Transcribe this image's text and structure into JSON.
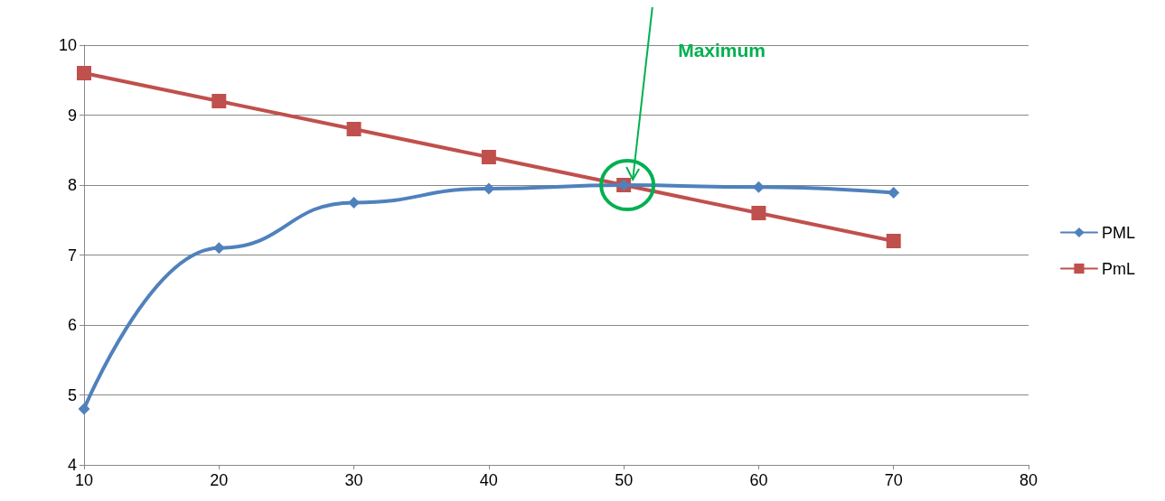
{
  "chart_data": {
    "type": "line",
    "x": [
      10,
      20,
      30,
      40,
      50,
      60,
      70
    ],
    "series": [
      {
        "name": "PML",
        "color": "#4f81bd",
        "values": [
          4.8,
          7.1,
          7.75,
          7.95,
          8.0,
          7.97,
          7.89
        ],
        "marker": "diamond"
      },
      {
        "name": "PmL",
        "color": "#c0504d",
        "values": [
          9.6,
          9.2,
          8.8,
          8.4,
          8.0,
          7.6,
          7.2
        ],
        "marker": "square"
      }
    ],
    "xlim": [
      10,
      80
    ],
    "xticks": [
      10,
      20,
      30,
      40,
      50,
      60,
      70,
      80
    ],
    "ylim": [
      4,
      10
    ],
    "yticks": [
      4,
      5,
      6,
      7,
      8,
      9,
      10
    ],
    "grid": "y",
    "legend": "right",
    "annotations": [
      "Maximum"
    ]
  }
}
